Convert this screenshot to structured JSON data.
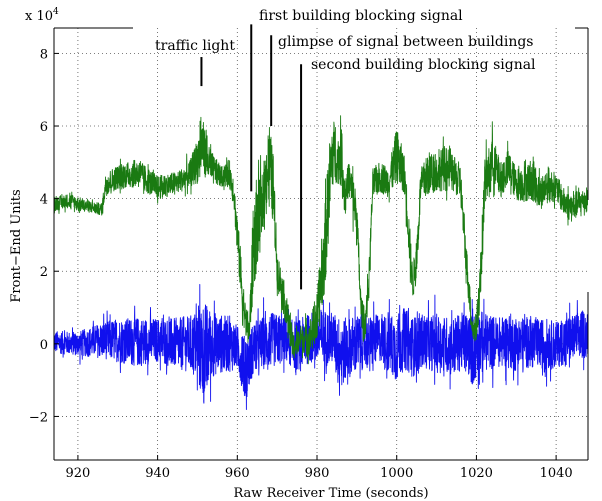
{
  "chart_data": {
    "type": "line",
    "title": "",
    "xlabel": "Raw Receiver Time (seconds)",
    "ylabel": "Front−End Units",
    "y_exponent_label": "x 10",
    "y_exponent_power": "4",
    "xlim": [
      914,
      1048
    ],
    "ylim": [
      -3.2,
      8.7
    ],
    "x_ticks": [
      920,
      940,
      960,
      980,
      1000,
      1020,
      1040
    ],
    "y_ticks": [
      -2,
      0,
      2,
      4,
      6,
      8
    ],
    "grid": true,
    "grid_style": "dotted",
    "colors": {
      "green": "#1a7a12",
      "blue": "#1010ee",
      "axes": "#000000"
    },
    "series": [
      {
        "color": "#1a7a12",
        "envelope_x": [
          914,
          918,
          922,
          926,
          927,
          930,
          935,
          940,
          945,
          948,
          950,
          951,
          953,
          956,
          958,
          959,
          960,
          961,
          962,
          963,
          964,
          965,
          966,
          967,
          968,
          969,
          970,
          972,
          974,
          976,
          978,
          980,
          982,
          983,
          984,
          985,
          986,
          987,
          988,
          989,
          990,
          991,
          992,
          993,
          994,
          996,
          998,
          1000,
          1002,
          1003,
          1004,
          1005,
          1006,
          1008,
          1010,
          1012,
          1014,
          1016,
          1017,
          1018,
          1019,
          1020,
          1021,
          1022,
          1024,
          1026,
          1028,
          1030,
          1032,
          1034,
          1036,
          1038,
          1040,
          1042,
          1044,
          1046,
          1048
        ],
        "envelope_low": [
          3.5,
          3.6,
          3.5,
          3.4,
          3.8,
          4.0,
          4.0,
          3.7,
          3.9,
          4.0,
          3.9,
          4.1,
          4.0,
          4.1,
          4.0,
          3.6,
          2.0,
          0.5,
          -0.2,
          -0.6,
          0.5,
          1.0,
          2.0,
          3.0,
          3.0,
          2.5,
          1.2,
          0.2,
          -0.8,
          -0.5,
          -0.7,
          -0.6,
          0.5,
          2.0,
          3.5,
          4.0,
          3.5,
          3.0,
          3.8,
          3.0,
          2.5,
          0.2,
          -0.2,
          0.8,
          3.6,
          3.8,
          3.7,
          3.8,
          3.7,
          2.0,
          0.8,
          1.2,
          3.5,
          3.6,
          3.8,
          3.7,
          3.8,
          3.5,
          2.0,
          0.8,
          -0.2,
          -0.3,
          0.5,
          3.2,
          3.8,
          3.6,
          3.9,
          3.6,
          3.5,
          3.5,
          3.3,
          3.5,
          3.6,
          3.2,
          3.0,
          3.3,
          3.4
        ],
        "envelope_high": [
          4.2,
          4.3,
          4.1,
          4.0,
          5.0,
          5.2,
          5.4,
          4.9,
          5.0,
          5.3,
          6.2,
          7.0,
          5.8,
          5.1,
          5.4,
          5.0,
          4.0,
          3.0,
          1.5,
          1.2,
          4.8,
          5.6,
          5.2,
          6.0,
          7.1,
          6.0,
          3.0,
          2.0,
          0.6,
          0.8,
          1.0,
          2.0,
          4.8,
          6.5,
          7.2,
          6.0,
          7.2,
          5.0,
          5.4,
          5.2,
          4.5,
          1.8,
          1.2,
          2.5,
          5.2,
          5.4,
          5.2,
          6.6,
          5.6,
          4.2,
          2.5,
          3.5,
          5.2,
          5.8,
          5.6,
          6.0,
          5.6,
          5.4,
          3.8,
          2.5,
          1.0,
          1.2,
          3.0,
          5.4,
          6.4,
          5.4,
          5.8,
          5.2,
          5.3,
          5.6,
          5.0,
          5.3,
          5.0,
          4.6,
          4.5,
          4.5,
          4.6
        ]
      },
      {
        "color": "#1010ee",
        "envelope_x": [
          914,
          920,
          926,
          930,
          935,
          940,
          945,
          948,
          950,
          951,
          952,
          953,
          955,
          958,
          960,
          961,
          962,
          963,
          964,
          966,
          968,
          970,
          972,
          975,
          978,
          980,
          982,
          984,
          986,
          988,
          990,
          992,
          994,
          996,
          998,
          1000,
          1002,
          1004,
          1006,
          1008,
          1010,
          1012,
          1014,
          1016,
          1018,
          1019,
          1020,
          1022,
          1024,
          1026,
          1028,
          1030,
          1032,
          1034,
          1036,
          1038,
          1040,
          1042,
          1044,
          1046,
          1048
        ],
        "envelope_low": [
          -0.5,
          -0.6,
          -0.8,
          -1.0,
          -1.2,
          -1.0,
          -1.3,
          -1.4,
          -1.9,
          -2.6,
          -3.1,
          -1.8,
          -1.5,
          -1.4,
          -1.2,
          -1.7,
          -2.4,
          -1.8,
          -1.4,
          -1.3,
          -1.3,
          -1.2,
          -1.0,
          -1.3,
          -1.1,
          -1.2,
          -1.3,
          -1.0,
          -2.0,
          -1.6,
          -1.5,
          -1.2,
          -1.2,
          -1.0,
          -1.5,
          -1.8,
          -1.4,
          -1.6,
          -1.3,
          -1.3,
          -1.5,
          -1.4,
          -1.6,
          -1.4,
          -1.6,
          -2.0,
          -1.8,
          -1.4,
          -1.3,
          -1.2,
          -1.3,
          -1.4,
          -1.2,
          -1.3,
          -1.2,
          -1.3,
          -1.2,
          -1.1,
          -1.0,
          -1.0,
          -0.9
        ],
        "envelope_high": [
          0.6,
          0.6,
          1.0,
          1.2,
          1.3,
          1.2,
          1.3,
          1.4,
          1.8,
          2.3,
          2.4,
          1.8,
          1.5,
          1.4,
          1.0,
          0.8,
          1.0,
          0.8,
          1.2,
          1.3,
          1.5,
          1.4,
          1.2,
          1.2,
          1.4,
          1.6,
          1.6,
          1.4,
          1.5,
          1.4,
          1.5,
          1.2,
          1.4,
          1.3,
          1.5,
          1.6,
          1.7,
          1.4,
          1.5,
          1.4,
          1.5,
          1.4,
          1.4,
          1.5,
          1.6,
          1.6,
          1.8,
          1.5,
          1.4,
          1.3,
          1.5,
          1.4,
          1.3,
          1.4,
          1.2,
          1.3,
          1.1,
          1.3,
          1.3,
          1.5,
          1.4
        ]
      }
    ],
    "annotations": [
      {
        "text": "traffic light",
        "x": 951,
        "line_top": 7.9,
        "line_bottom": 7.1
      },
      {
        "text": "first building blocking signal",
        "x": 963.5,
        "line_top": 8.8,
        "line_bottom": 4.2
      },
      {
        "text": "glimpse of signal between buildings",
        "x": 968.5,
        "line_top": 8.5,
        "line_bottom": 6.0
      },
      {
        "text": "second building blocking signal",
        "x": 976,
        "line_top": 7.7,
        "line_bottom": 1.5
      }
    ]
  }
}
